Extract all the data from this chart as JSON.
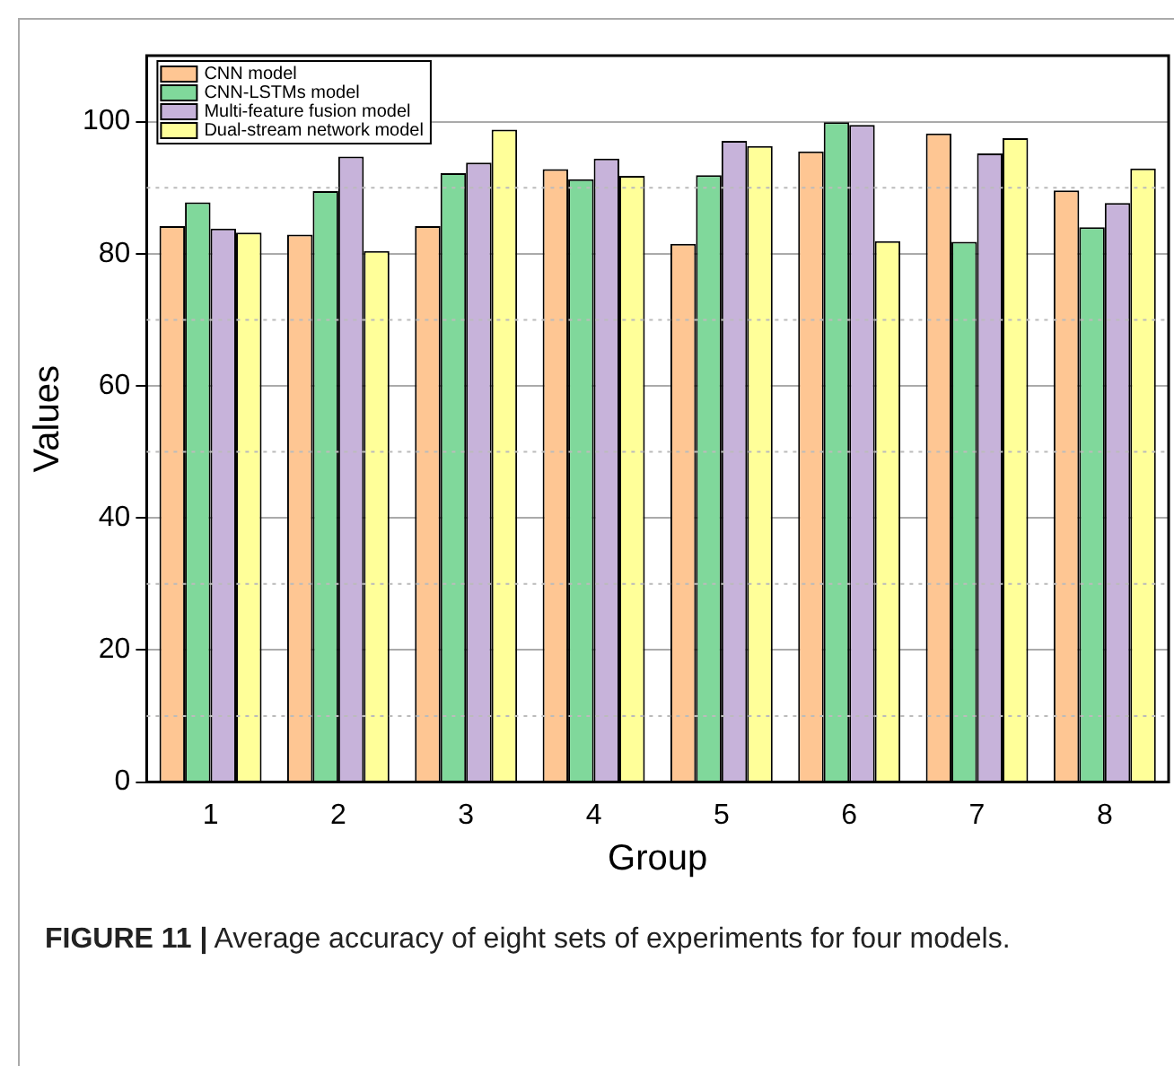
{
  "chart_data": {
    "type": "bar",
    "xlabel": "Group",
    "ylabel": "Values",
    "categories": [
      "1",
      "2",
      "3",
      "4",
      "5",
      "6",
      "7",
      "8"
    ],
    "series": [
      {
        "name": "CNN model",
        "color": "#fec693",
        "values": [
          84.2,
          82.9,
          84.2,
          92.8,
          81.5,
          95.5,
          98.2,
          89.6
        ]
      },
      {
        "name": "CNN-LSTMs model",
        "color": "#80d89b",
        "values": [
          87.8,
          89.5,
          92.2,
          91.3,
          91.9,
          99.9,
          81.8,
          84.0
        ]
      },
      {
        "name": "Multi-feature fusion model",
        "color": "#c7b3da",
        "values": [
          83.8,
          94.7,
          93.8,
          94.4,
          97.1,
          99.5,
          95.2,
          87.7
        ]
      },
      {
        "name": "Dual-stream network model",
        "color": "#ffff99",
        "values": [
          83.2,
          80.4,
          98.8,
          91.8,
          96.3,
          81.9,
          97.5,
          92.9
        ]
      }
    ],
    "ylim": [
      0,
      110
    ],
    "yticks": [
      0,
      20,
      40,
      60,
      80,
      100
    ],
    "grid": "y",
    "legend": "top left",
    "annotations": [
      "FIGURE 11 | Average accuracy of eight sets of experiments for four models."
    ]
  }
}
